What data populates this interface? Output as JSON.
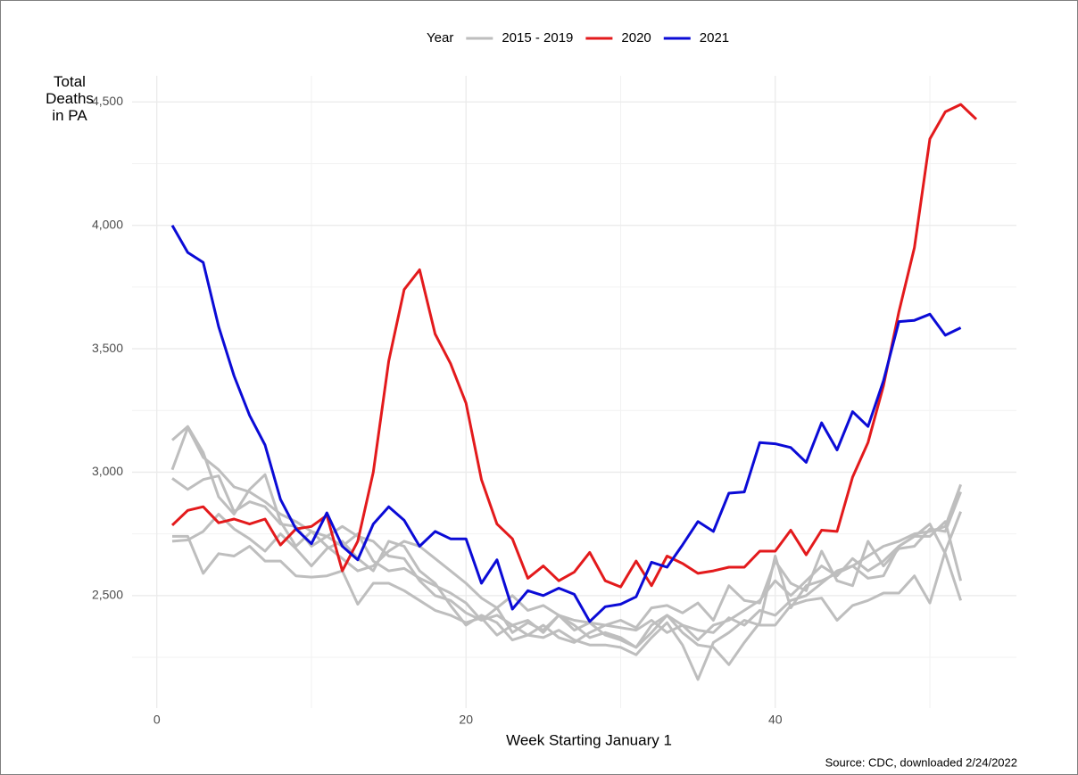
{
  "chart_data": {
    "type": "line",
    "legend_title": "Year",
    "legend_position": "top",
    "xlabel": "Week Starting January 1",
    "ylabel": "Total Deaths in PA",
    "caption": "Source: CDC, downloaded 2/24/2022",
    "x": [
      1,
      2,
      3,
      4,
      5,
      6,
      7,
      8,
      9,
      10,
      11,
      12,
      13,
      14,
      15,
      16,
      17,
      18,
      19,
      20,
      21,
      22,
      23,
      24,
      25,
      26,
      27,
      28,
      29,
      30,
      31,
      32,
      33,
      34,
      35,
      36,
      37,
      38,
      39,
      40,
      41,
      42,
      43,
      44,
      45,
      46,
      47,
      48,
      49,
      50,
      51,
      52,
      53
    ],
    "xlim": [
      -1.6,
      55.6
    ],
    "xticks": [
      0,
      20,
      40
    ],
    "xticks_minor": [
      10,
      30,
      50
    ],
    "ylim": [
      2044,
      4606
    ],
    "yticks": [
      {
        "value": 2500,
        "label": "2,500"
      },
      {
        "value": 3000,
        "label": "3,000"
      },
      {
        "value": 3500,
        "label": "3,500"
      },
      {
        "value": 4000,
        "label": "4,000"
      },
      {
        "value": 4500,
        "label": "4,500"
      }
    ],
    "yticks_minor": [
      2250,
      2750,
      3250,
      3750,
      4250
    ],
    "grid": true,
    "series": [
      {
        "name": "2015 - 2019",
        "color": "#bebebe",
        "values": [
          3130,
          3185,
          3080,
          2900,
          2830,
          2930,
          2990,
          2800,
          2700,
          2760,
          2740,
          2780,
          2740,
          2720,
          2660,
          2650,
          2560,
          2500,
          2480,
          2430,
          2400,
          2450,
          2350,
          2390,
          2360,
          2420,
          2380,
          2330,
          2350,
          2330,
          2290,
          2350,
          2420,
          2380,
          2320,
          2380,
          2400,
          2440,
          2480,
          2560,
          2500,
          2560,
          2620,
          2580,
          2650,
          2600,
          2640,
          2700,
          2740,
          2790,
          2670,
          2480,
          null
        ]
      },
      {
        "color": "#bebebe",
        "values": [
          3010,
          3180,
          3060,
          3010,
          2940,
          2920,
          2880,
          2830,
          2800,
          2760,
          2700,
          2650,
          2600,
          2620,
          2680,
          2720,
          2700,
          2650,
          2600,
          2550,
          2490,
          2450,
          2500,
          2440,
          2460,
          2420,
          2400,
          2390,
          2380,
          2370,
          2360,
          2400,
          2350,
          2380,
          2360,
          2350,
          2410,
          2380,
          2440,
          2420,
          2480,
          2500,
          2550,
          2600,
          2620,
          2660,
          2700,
          2720,
          2750,
          2760,
          2780,
          2950,
          null
        ]
      },
      {
        "color": "#bebebe",
        "values": [
          2975,
          2930,
          2970,
          2985,
          2840,
          2880,
          2860,
          2790,
          2780,
          2700,
          2740,
          2700,
          2750,
          2640,
          2600,
          2610,
          2570,
          2540,
          2510,
          2470,
          2400,
          2420,
          2380,
          2400,
          2350,
          2420,
          2360,
          2390,
          2340,
          2320,
          2290,
          2380,
          2420,
          2350,
          2300,
          2290,
          2220,
          2310,
          2390,
          2660,
          2450,
          2540,
          2560,
          2590,
          2620,
          2570,
          2580,
          2700,
          2740,
          2740,
          2800,
          2560,
          null
        ]
      },
      {
        "color": "#bebebe",
        "values": [
          2740,
          2740,
          2590,
          2670,
          2660,
          2700,
          2640,
          2640,
          2580,
          2575,
          2580,
          2600,
          2465,
          2550,
          2550,
          2520,
          2480,
          2440,
          2420,
          2390,
          2410,
          2340,
          2380,
          2340,
          2330,
          2360,
          2320,
          2300,
          2300,
          2290,
          2260,
          2330,
          2390,
          2300,
          2160,
          2310,
          2350,
          2400,
          2380,
          2380,
          2460,
          2480,
          2490,
          2400,
          2460,
          2480,
          2510,
          2510,
          2580,
          2470,
          2680,
          2840,
          null
        ]
      },
      {
        "color": "#bebebe",
        "values": [
          2720,
          2725,
          2760,
          2830,
          2770,
          2730,
          2680,
          2750,
          2690,
          2620,
          2690,
          2720,
          2650,
          2600,
          2720,
          2700,
          2600,
          2550,
          2460,
          2380,
          2420,
          2390,
          2320,
          2340,
          2380,
          2330,
          2310,
          2350,
          2380,
          2400,
          2370,
          2450,
          2460,
          2430,
          2470,
          2400,
          2540,
          2480,
          2470,
          2640,
          2550,
          2520,
          2680,
          2560,
          2540,
          2720,
          2620,
          2690,
          2700,
          2770,
          2760,
          2920,
          null
        ]
      },
      {
        "name": "2020",
        "color": "#e31a1c",
        "values": [
          2785,
          2845,
          2860,
          2795,
          2810,
          2790,
          2810,
          2705,
          2770,
          2780,
          2825,
          2600,
          2720,
          3000,
          3450,
          3740,
          3820,
          3560,
          3440,
          3280,
          2970,
          2790,
          2730,
          2570,
          2620,
          2560,
          2595,
          2675,
          2560,
          2535,
          2640,
          2540,
          2660,
          2630,
          2590,
          2600,
          2615,
          2615,
          2680,
          2680,
          2765,
          2665,
          2765,
          2760,
          2980,
          3120,
          3350,
          3650,
          3910,
          4350,
          4460,
          4490,
          4430
        ]
      },
      {
        "name": "2021",
        "color": "#0b0bd6",
        "values": [
          4000,
          3890,
          3850,
          3590,
          3390,
          3230,
          3110,
          2890,
          2770,
          2710,
          2835,
          2700,
          2645,
          2790,
          2860,
          2805,
          2700,
          2760,
          2730,
          2730,
          2550,
          2645,
          2445,
          2520,
          2500,
          2530,
          2505,
          2395,
          2455,
          2465,
          2495,
          2635,
          2615,
          2705,
          2800,
          2760,
          2915,
          2920,
          3120,
          3115,
          3100,
          3040,
          3200,
          3090,
          3245,
          3185,
          3370,
          3610,
          3615,
          3640,
          3555,
          3585,
          null
        ]
      }
    ]
  }
}
